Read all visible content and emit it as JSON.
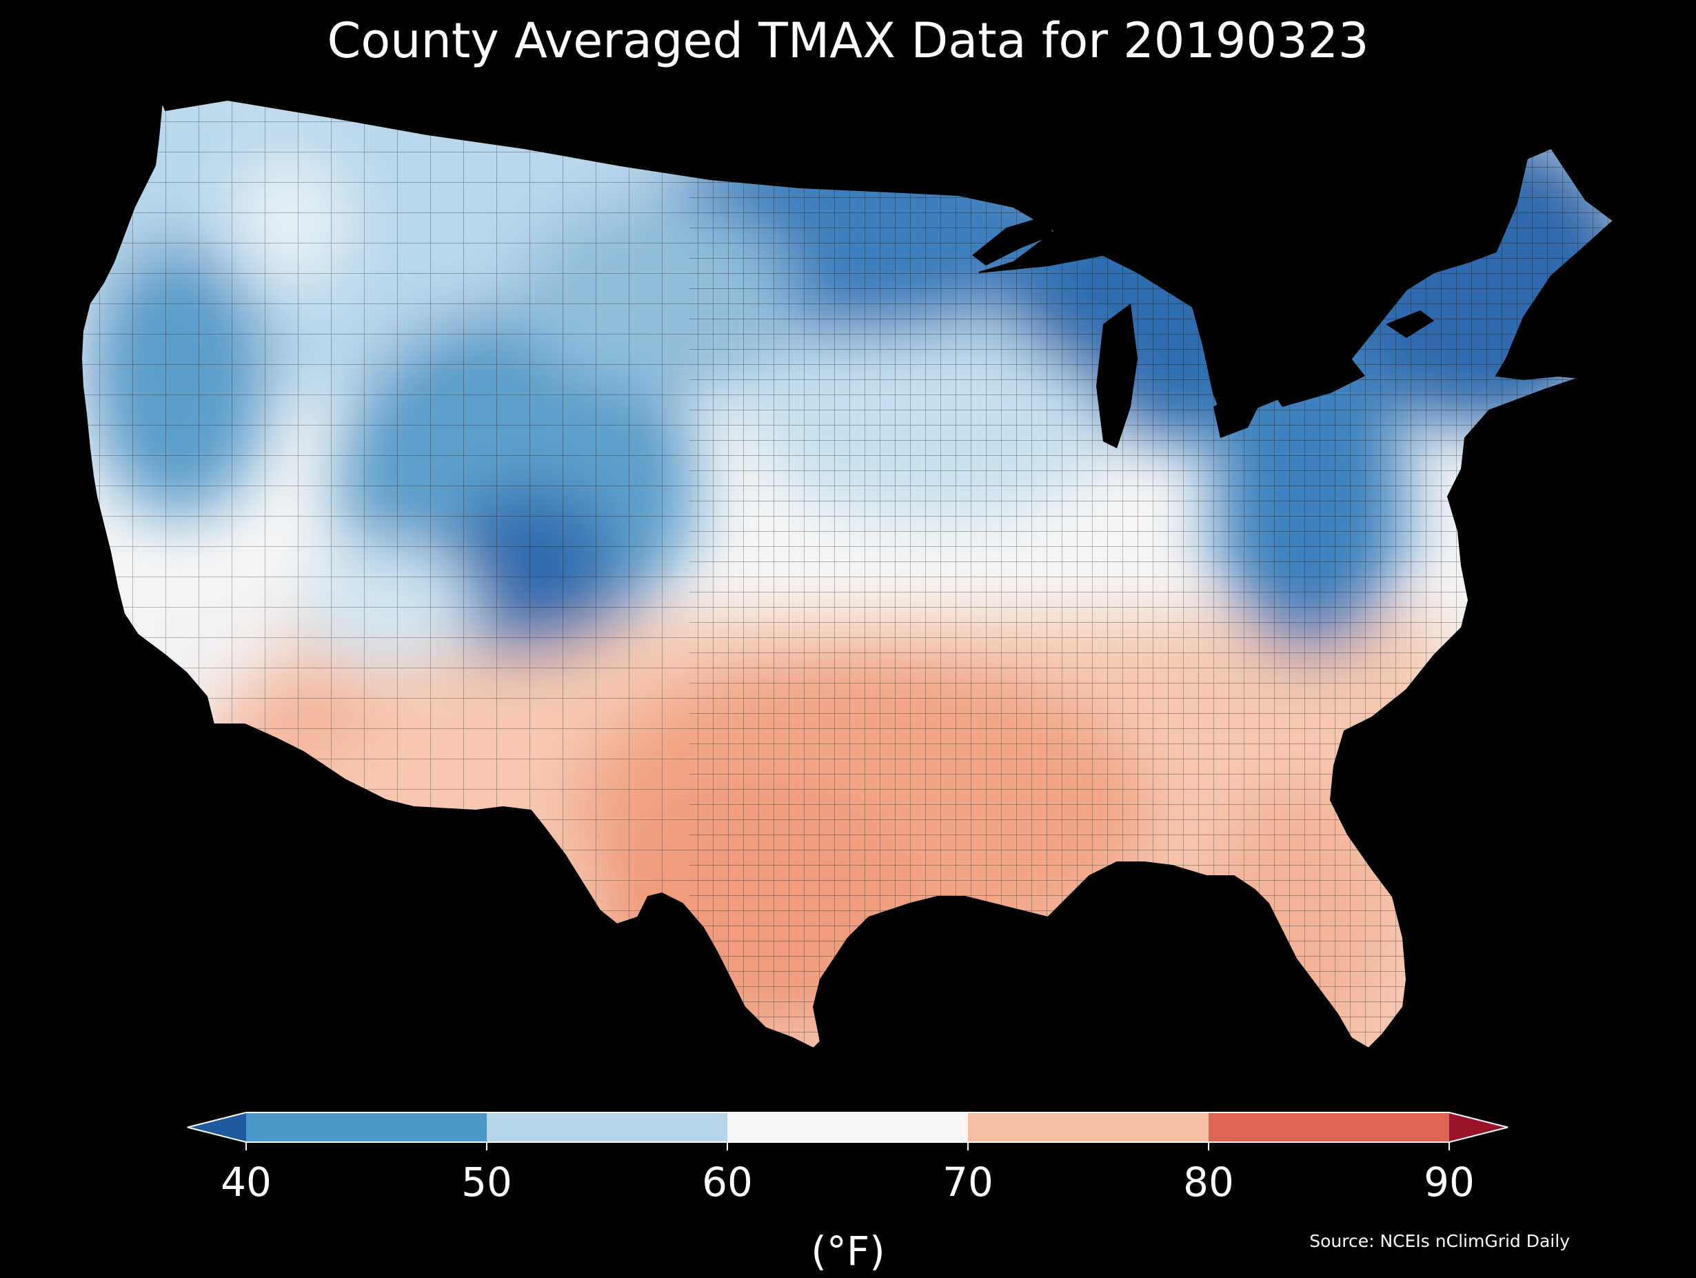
{
  "title": "County Averaged TMAX Data for 20190323",
  "colorbar": {
    "label": "(°F)",
    "ticks": [
      "40",
      "50",
      "60",
      "70",
      "80",
      "90"
    ],
    "bins": [
      {
        "range": "<40",
        "color": "#1f5b9e"
      },
      {
        "range": "40-50",
        "color": "#4b98c8"
      },
      {
        "range": "50-60",
        "color": "#b5d6e9"
      },
      {
        "range": "60-70",
        "color": "#f5f5f5"
      },
      {
        "range": "70-80",
        "color": "#f6bfa2"
      },
      {
        "range": "80-90",
        "color": "#dd6653"
      },
      {
        "range": ">90",
        "color": "#9a1327"
      }
    ]
  },
  "source": "Source: NCEIs nClimGrid Daily",
  "map": {
    "region": "contiguous-us-counties",
    "background": "#000000",
    "border_color": "#000000"
  }
}
